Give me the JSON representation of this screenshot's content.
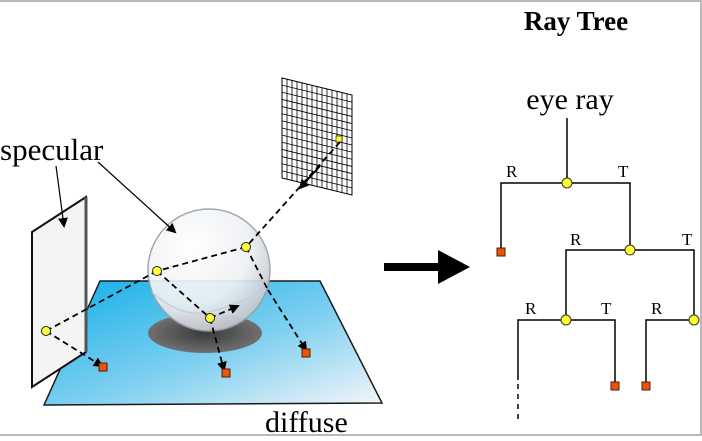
{
  "title": "Ray Tree",
  "labels": {
    "specular": "specular",
    "diffuse": "diffuse",
    "eye_ray": "eye ray"
  },
  "tree_edges": {
    "r1": "R",
    "t1": "T",
    "r2": "R",
    "t2": "T",
    "r3": "R",
    "t3": "T",
    "r4": "R"
  },
  "colors": {
    "floor_top": "#1ab4ea",
    "floor_bottom": "#f2f4f8",
    "node_fill": "#ffff33",
    "leaf_fill": "#e8550a",
    "arrow": "#000000",
    "frame": "#b9b9b9"
  },
  "icons": {
    "pixel_grid": "image-plane-grid",
    "sphere": "glass-sphere",
    "mirror": "mirror-plane",
    "arrow": "right-arrow"
  }
}
